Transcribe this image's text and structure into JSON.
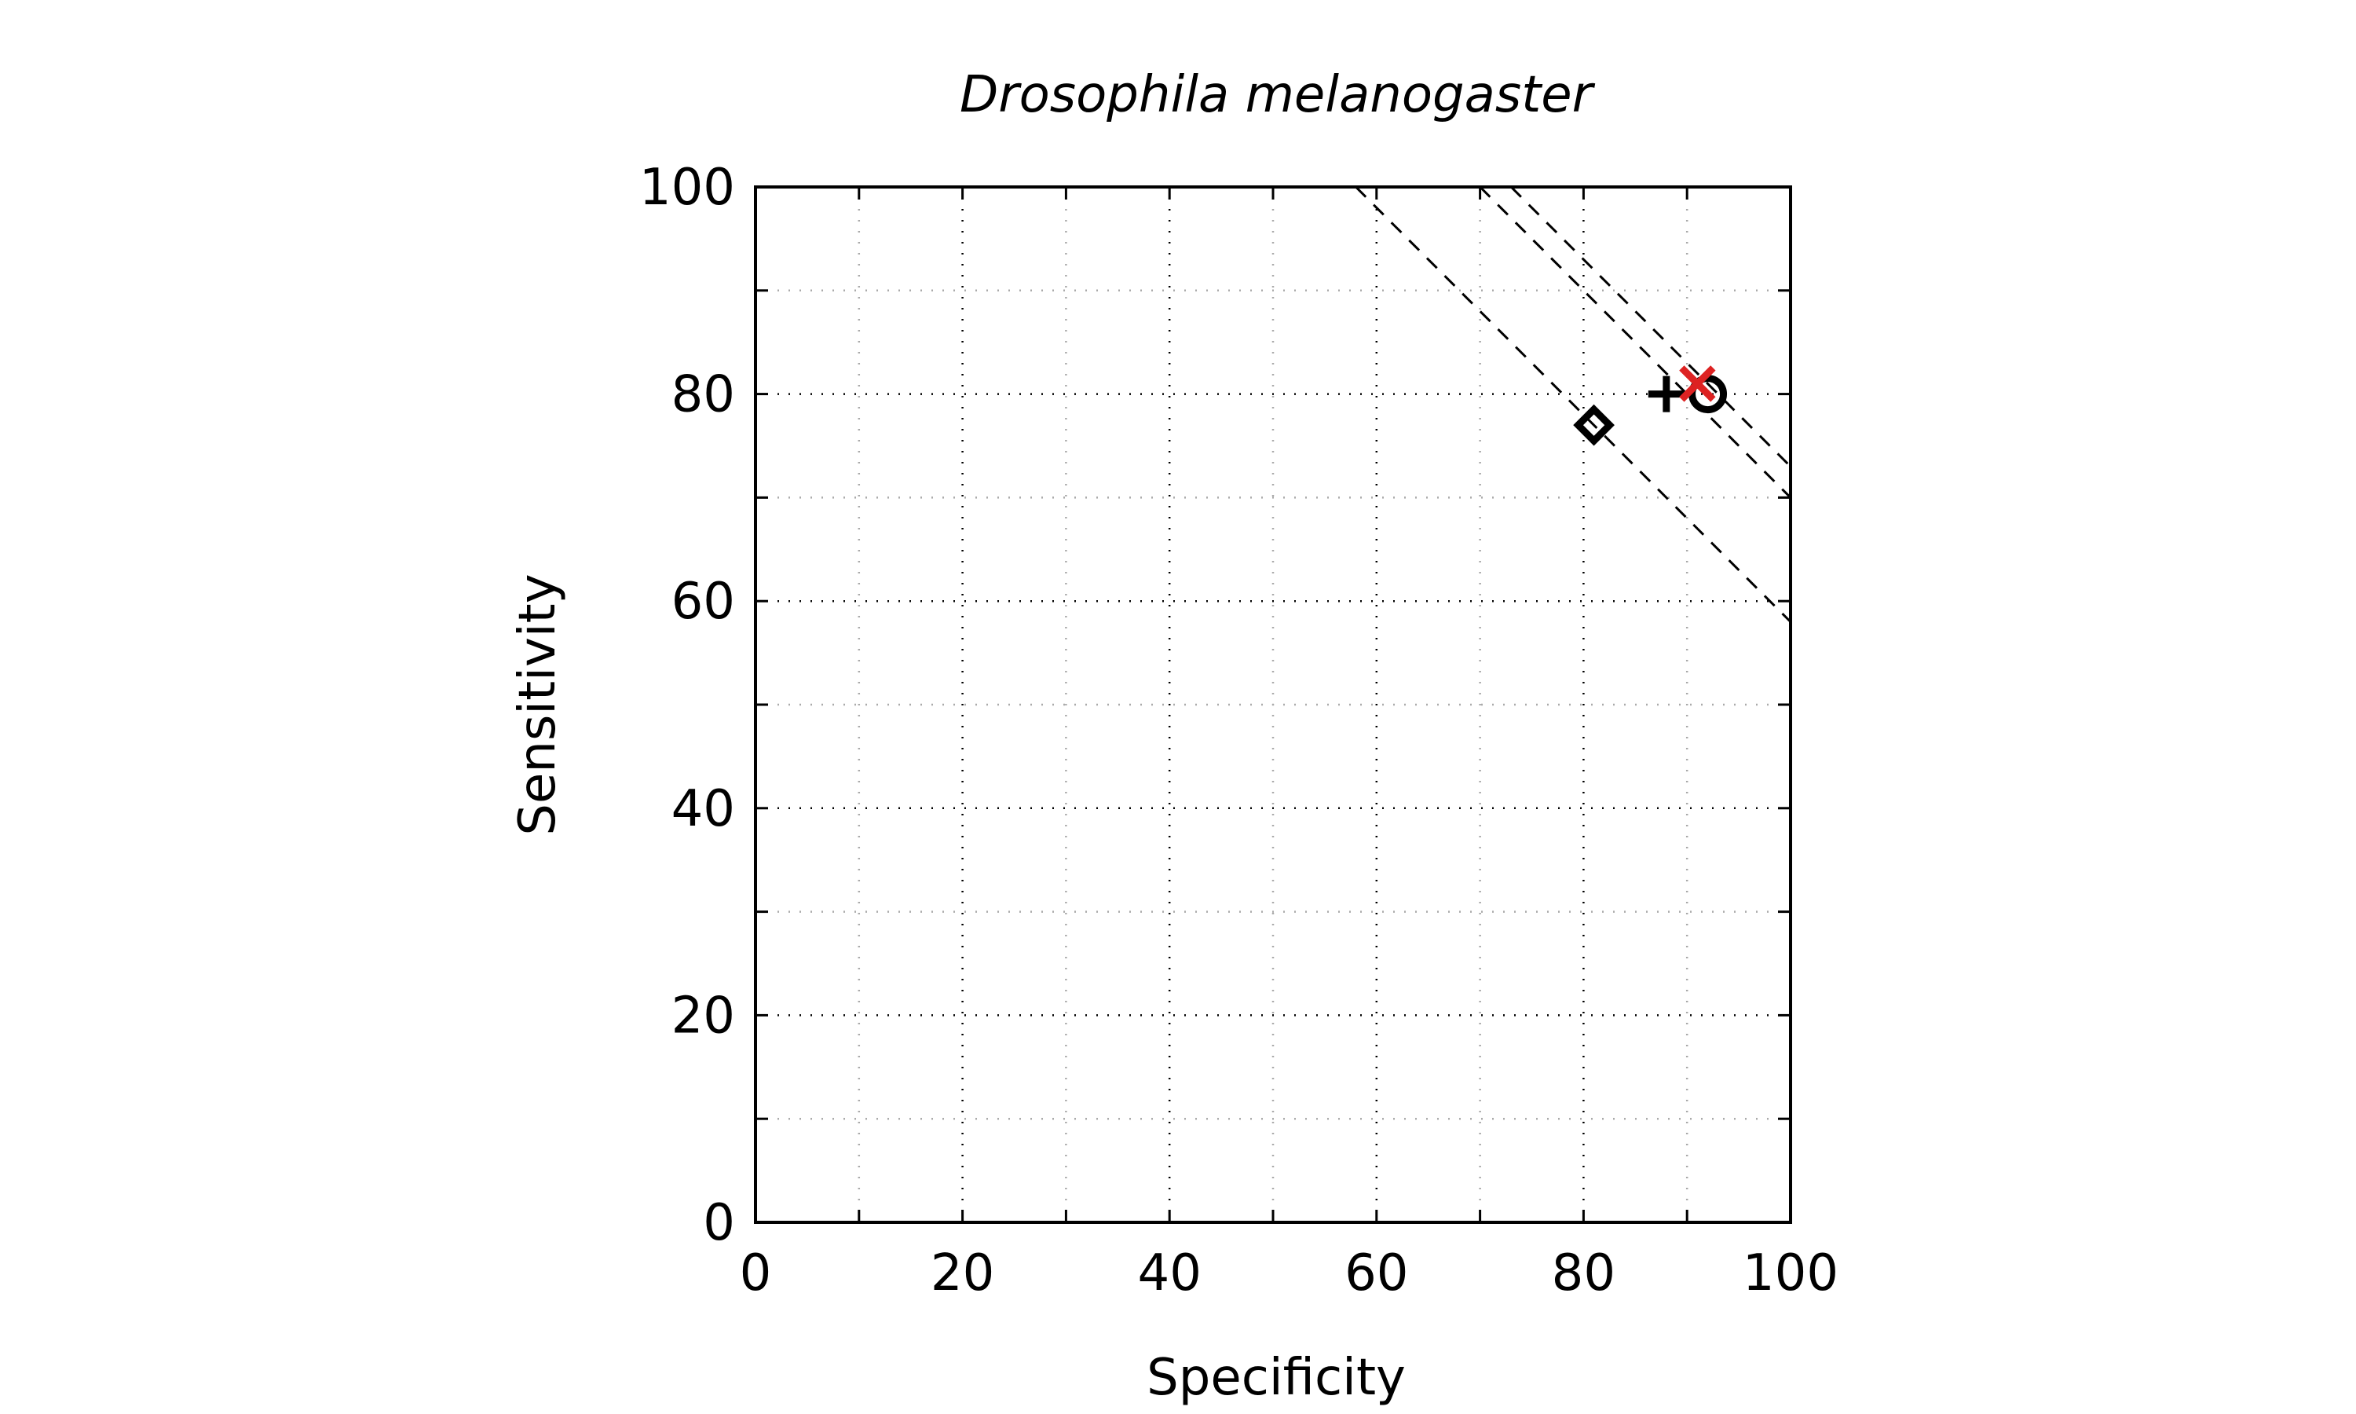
{
  "chart_data": {
    "type": "scatter",
    "title": "Drosophila melanogaster",
    "xlabel": "Specificity",
    "ylabel": "Sensitivity",
    "xlim": [
      0,
      100
    ],
    "ylim": [
      0,
      100
    ],
    "xticks": [
      0,
      20,
      40,
      60,
      80,
      100
    ],
    "yticks": [
      0,
      20,
      40,
      60,
      80,
      100
    ],
    "minor_ticks": [
      10,
      30,
      50,
      70,
      90
    ],
    "grid": true,
    "reference_lines_sum": [
      158,
      170,
      173
    ],
    "points": [
      {
        "marker": "diamond",
        "x": 81,
        "y": 77,
        "color": "#000000"
      },
      {
        "marker": "plus",
        "x": 88,
        "y": 80,
        "color": "#000000"
      },
      {
        "marker": "circle",
        "x": 92,
        "y": 80,
        "color": "#000000"
      },
      {
        "marker": "cross",
        "x": 91,
        "y": 81,
        "color": "#dd2222"
      }
    ]
  }
}
